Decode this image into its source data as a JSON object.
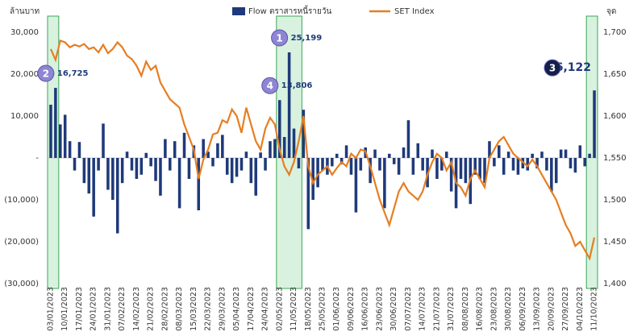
{
  "chart_data": {
    "type": "bar-line",
    "y_axis_label": "ล้านบาท",
    "y2_axis_label": "จุด",
    "categories": [
      "03/01/2023",
      null,
      null,
      "10/01/2023",
      null,
      null,
      "17/01/2023",
      null,
      null,
      "24/01/2023",
      null,
      null,
      "31/01/2023",
      null,
      null,
      "07/02/2023",
      null,
      null,
      "14/02/2023",
      null,
      null,
      "21/02/2023",
      null,
      null,
      "28/02/2023",
      null,
      null,
      "08/03/2023",
      null,
      null,
      "15/03/2023",
      null,
      null,
      "22/03/2023",
      null,
      null,
      "29/03/2023",
      null,
      null,
      "05/04/2023",
      null,
      null,
      "17/04/2023",
      null,
      null,
      "24/04/2023",
      null,
      null,
      "02/05/2023",
      null,
      null,
      "11/05/2023",
      null,
      null,
      "18/05/2023",
      null,
      null,
      "25/05/2023",
      null,
      null,
      "01/06/2023",
      null,
      null,
      "09/06/2023",
      null,
      null,
      "16/06/2023",
      null,
      null,
      "23/06/2023",
      null,
      null,
      "30/06/2023",
      null,
      null,
      "07/07/2023",
      null,
      null,
      "14/07/2023",
      null,
      null,
      "21/07/2023",
      null,
      null,
      "31/07/2023",
      null,
      null,
      "08/08/2023",
      null,
      null,
      "16/08/2023",
      null,
      null,
      "23/08/2023",
      null,
      null,
      "30/08/2023",
      null,
      null,
      "06/09/2023",
      null,
      null,
      "13/09/2023",
      null,
      null,
      "20/09/2023",
      null,
      null,
      "27/09/2023",
      null,
      null,
      "04/10/2023",
      null,
      null,
      "11/10/2023"
    ],
    "series": [
      {
        "name": "Flow ตราสารหนี้รายวัน",
        "color": "#1f3a7a",
        "type": "bar",
        "values": [
          12700,
          16725,
          8000,
          10300,
          4000,
          -3000,
          3800,
          -6000,
          -8500,
          -14000,
          -3000,
          8200,
          -7600,
          -10000,
          -18000,
          -6000,
          1500,
          -3000,
          -5000,
          -4000,
          1200,
          -2000,
          -5500,
          -9000,
          4500,
          -3000,
          4000,
          -12000,
          6000,
          -5000,
          3000,
          -12500,
          4500,
          1500,
          -2000,
          3500,
          5500,
          -4000,
          -6000,
          -4500,
          -3000,
          1500,
          -6000,
          -9000,
          1300,
          -3000,
          4000,
          4500,
          13806,
          5000,
          25199,
          7000,
          -2500,
          11500,
          -17000,
          -10000,
          -7000,
          -3000,
          -4000,
          -2000,
          1000,
          -1500,
          3000,
          -4000,
          -13000,
          -3000,
          2500,
          -6000,
          2000,
          -3000,
          -12000,
          1000,
          -1500,
          -4000,
          2500,
          9000,
          -4000,
          3500,
          -3000,
          -7000,
          2000,
          -5000,
          -3000,
          1500,
          -8000,
          -12000,
          -5000,
          -6000,
          -11000,
          -4000,
          -5000,
          -6000,
          4000,
          -2000,
          3000,
          -4000,
          1500,
          -3000,
          -4000,
          -2500,
          -3000,
          1000,
          -2500,
          1500,
          -3000,
          -8000,
          -6000,
          2000,
          2000,
          -2500,
          -3500,
          3000,
          -2000,
          1000,
          16122
        ],
        "value_labels": [
          null,
          "16,725",
          null,
          null,
          null,
          null,
          null,
          null,
          null,
          null,
          null,
          null,
          null,
          null,
          null,
          null,
          null,
          null,
          null,
          null,
          null,
          null,
          null,
          null,
          null,
          null,
          null,
          null,
          null,
          null,
          null,
          null,
          null,
          null,
          null,
          null,
          null,
          null,
          null,
          null,
          null,
          null,
          null,
          null,
          null,
          null,
          null,
          null,
          "13,806",
          null,
          "25,199",
          null,
          null,
          null,
          null,
          null,
          null,
          null,
          null,
          null,
          null,
          null,
          null,
          null,
          null,
          null,
          null,
          null,
          null,
          null,
          null,
          null,
          null,
          null,
          null,
          null,
          null,
          null,
          null,
          null,
          null,
          null,
          null,
          null,
          null,
          null,
          null,
          null,
          null,
          null,
          null,
          null,
          null,
          null,
          null,
          null,
          null,
          null,
          null,
          null,
          null,
          null,
          null,
          null,
          null,
          null,
          null,
          null,
          null,
          null,
          null,
          null,
          null,
          null,
          "16,122"
        ]
      },
      {
        "name": "SET Index",
        "color": "#e67e22",
        "type": "line",
        "axis": "y2",
        "values": [
          1680,
          1667,
          1690,
          1688,
          1682,
          1685,
          1683,
          1686,
          1680,
          1682,
          1676,
          1685,
          1675,
          1680,
          1688,
          1682,
          1672,
          1668,
          1660,
          1648,
          1665,
          1655,
          1660,
          1640,
          1630,
          1620,
          1615,
          1610,
          1590,
          1575,
          1560,
          1525,
          1548,
          1560,
          1578,
          1580,
          1595,
          1592,
          1608,
          1600,
          1580,
          1610,
          1590,
          1570,
          1560,
          1585,
          1598,
          1590,
          1560,
          1540,
          1530,
          1545,
          1570,
          1600,
          1540,
          1520,
          1530,
          1535,
          1540,
          1530,
          1538,
          1545,
          1540,
          1555,
          1550,
          1560,
          1558,
          1540,
          1520,
          1500,
          1485,
          1470,
          1490,
          1510,
          1520,
          1510,
          1505,
          1500,
          1510,
          1530,
          1545,
          1555,
          1550,
          1535,
          1545,
          1520,
          1515,
          1505,
          1525,
          1535,
          1525,
          1515,
          1550,
          1560,
          1570,
          1575,
          1565,
          1555,
          1550,
          1545,
          1540,
          1548,
          1540,
          1530,
          1520,
          1510,
          1500,
          1485,
          1470,
          1460,
          1445,
          1450,
          1440,
          1430,
          1455
        ]
      }
    ],
    "annotations": [
      "2",
      "4",
      "1",
      "3"
    ],
    "ylim": [
      -30000,
      30000
    ],
    "yticks": [
      {
        "value": -30000,
        "label": "(30,000)"
      },
      {
        "value": -20000,
        "label": "(20,000)"
      },
      {
        "value": -10000,
        "label": "(10,000)"
      },
      {
        "value": 0,
        "label": "-"
      },
      {
        "value": 10000,
        "label": "10,000"
      },
      {
        "value": 20000,
        "label": "20,000"
      },
      {
        "value": 30000,
        "label": "30,000"
      }
    ],
    "y2lim": [
      1400,
      1700
    ],
    "y2ticks": [
      {
        "value": 1400,
        "label": "1,400"
      },
      {
        "value": 1450,
        "label": "1,450"
      },
      {
        "value": 1500,
        "label": "1,500"
      },
      {
        "value": 1550,
        "label": "1,550"
      },
      {
        "value": 1600,
        "label": "1,600"
      },
      {
        "value": 1650,
        "label": "1,650"
      },
      {
        "value": 1700,
        "label": "1,700"
      }
    ]
  }
}
